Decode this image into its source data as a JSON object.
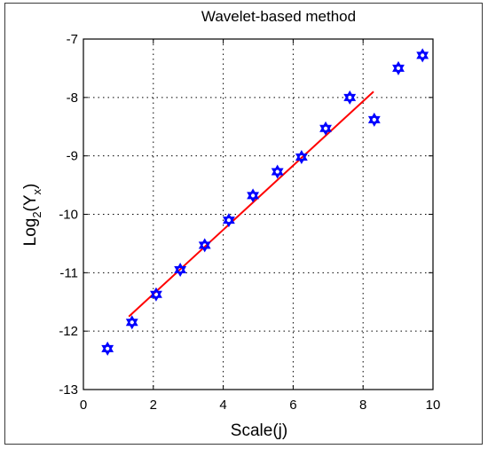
{
  "chart_data": {
    "type": "scatter",
    "title": "Wavelet-based method",
    "xlabel": "Scale(j)",
    "ylabel_main": "Log",
    "ylabel_sub": "2",
    "ylabel_open": "(Y",
    "ylabel_subsub": "x",
    "ylabel_close": ")",
    "xlim": [
      0,
      10
    ],
    "ylim": [
      -13,
      -7
    ],
    "xticks": [
      0,
      2,
      4,
      6,
      8,
      10
    ],
    "yticks": [
      -13,
      -12,
      -11,
      -10,
      -9,
      -8,
      -7
    ],
    "xtick_labels": [
      "0",
      "2",
      "4",
      "6",
      "8",
      "10"
    ],
    "ytick_labels": [
      "-13",
      "-12",
      "-11",
      "-10",
      "-9",
      "-8",
      "-7"
    ],
    "grid": true,
    "series": [
      {
        "kind": "points",
        "marker": "hexagram",
        "color": "#0000ff",
        "x": [
          0.69,
          1.39,
          2.08,
          2.77,
          3.47,
          4.16,
          4.85,
          5.55,
          6.24,
          6.93,
          7.62,
          8.32,
          9.01,
          9.7
        ],
        "y": [
          -12.3,
          -11.85,
          -11.37,
          -10.95,
          -10.53,
          -10.1,
          -9.68,
          -9.27,
          -9.02,
          -8.53,
          -8.0,
          -8.38,
          -7.5,
          -7.28
        ]
      },
      {
        "kind": "fit-line",
        "color": "#ff0000",
        "x": [
          1.3,
          8.3
        ],
        "y": [
          -11.75,
          -7.9
        ]
      }
    ]
  }
}
